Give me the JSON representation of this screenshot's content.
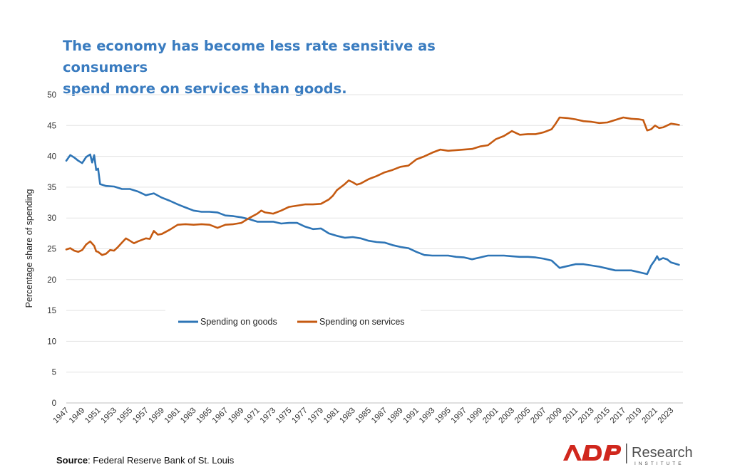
{
  "title": {
    "line1": "The economy has become less rate sensitive as consumers",
    "line2": "spend more on services than goods."
  },
  "source": {
    "label": "Source",
    "text": ": Federal Reserve Bank of St. Louis"
  },
  "logo": {
    "brand": "ADP",
    "name": "Research",
    "sub": "INSTITUTE",
    "brand_color": "#d0271d",
    "text_color": "#4d4d4d"
  },
  "chart_data": {
    "type": "line",
    "title": "The economy has become less rate sensitive as consumers spend more on services than goods.",
    "xlabel": "",
    "ylabel": "Percentage share of spending",
    "ylim": [
      0,
      50
    ],
    "yticks": [
      0,
      5,
      10,
      15,
      20,
      25,
      30,
      35,
      40,
      45,
      50
    ],
    "xlim": [
      1947,
      2024.5
    ],
    "xticks": [
      "1947",
      "1949",
      "1951",
      "1953",
      "1955",
      "1957",
      "1959",
      "1961",
      "1963",
      "1965",
      "1967",
      "1969",
      "1971",
      "1973",
      "1975",
      "1977",
      "1979",
      "1981",
      "1983",
      "1985",
      "1987",
      "1989",
      "1991",
      "1993",
      "1995",
      "1997",
      "1999",
      "2001",
      "2003",
      "2005",
      "2007",
      "2009",
      "2011",
      "2013",
      "2015",
      "2017",
      "2019",
      "2021",
      "2023"
    ],
    "grid": true,
    "legend_position": "center",
    "series": [
      {
        "name": "Spending on goods",
        "color": "#2e75b6",
        "points": [
          [
            1947,
            39.3
          ],
          [
            1947.5,
            40.2
          ],
          [
            1948,
            39.8
          ],
          [
            1948.5,
            39.3
          ],
          [
            1949,
            38.9
          ],
          [
            1949.5,
            39.9
          ],
          [
            1950,
            40.3
          ],
          [
            1950.25,
            39.0
          ],
          [
            1950.5,
            40.2
          ],
          [
            1950.75,
            37.8
          ],
          [
            1951,
            38.0
          ],
          [
            1951.25,
            35.5
          ],
          [
            1952,
            35.2
          ],
          [
            1953,
            35.1
          ],
          [
            1954,
            34.7
          ],
          [
            1955,
            34.7
          ],
          [
            1956,
            34.3
          ],
          [
            1957,
            33.7
          ],
          [
            1958,
            34.0
          ],
          [
            1959,
            33.3
          ],
          [
            1960,
            32.8
          ],
          [
            1961,
            32.2
          ],
          [
            1962,
            31.7
          ],
          [
            1963,
            31.2
          ],
          [
            1964,
            31.0
          ],
          [
            1965,
            31.0
          ],
          [
            1966,
            30.9
          ],
          [
            1967,
            30.4
          ],
          [
            1968,
            30.3
          ],
          [
            1969,
            30.1
          ],
          [
            1970,
            29.8
          ],
          [
            1971,
            29.4
          ],
          [
            1972,
            29.4
          ],
          [
            1973,
            29.4
          ],
          [
            1974,
            29.1
          ],
          [
            1975,
            29.2
          ],
          [
            1976,
            29.2
          ],
          [
            1977,
            28.6
          ],
          [
            1978,
            28.2
          ],
          [
            1979,
            28.3
          ],
          [
            1980,
            27.5
          ],
          [
            1981,
            27.1
          ],
          [
            1982,
            26.8
          ],
          [
            1983,
            26.9
          ],
          [
            1984,
            26.7
          ],
          [
            1985,
            26.3
          ],
          [
            1986,
            26.1
          ],
          [
            1987,
            26.0
          ],
          [
            1988,
            25.6
          ],
          [
            1989,
            25.3
          ],
          [
            1990,
            25.1
          ],
          [
            1991,
            24.5
          ],
          [
            1992,
            24.0
          ],
          [
            1993,
            23.9
          ],
          [
            1994,
            23.9
          ],
          [
            1995,
            23.9
          ],
          [
            1996,
            23.7
          ],
          [
            1997,
            23.6
          ],
          [
            1998,
            23.3
          ],
          [
            1999,
            23.6
          ],
          [
            2000,
            23.9
          ],
          [
            2001,
            23.9
          ],
          [
            2002,
            23.9
          ],
          [
            2003,
            23.8
          ],
          [
            2004,
            23.7
          ],
          [
            2005,
            23.7
          ],
          [
            2006,
            23.6
          ],
          [
            2007,
            23.4
          ],
          [
            2008,
            23.1
          ],
          [
            2009,
            21.9
          ],
          [
            2010,
            22.2
          ],
          [
            2011,
            22.5
          ],
          [
            2012,
            22.5
          ],
          [
            2013,
            22.3
          ],
          [
            2014,
            22.1
          ],
          [
            2015,
            21.8
          ],
          [
            2016,
            21.5
          ],
          [
            2017,
            21.5
          ],
          [
            2018,
            21.5
          ],
          [
            2019,
            21.2
          ],
          [
            2020,
            20.9
          ],
          [
            2020.5,
            22.3
          ],
          [
            2021,
            23.2
          ],
          [
            2021.25,
            23.8
          ],
          [
            2021.5,
            23.2
          ],
          [
            2022,
            23.5
          ],
          [
            2022.5,
            23.3
          ],
          [
            2023,
            22.8
          ],
          [
            2023.5,
            22.6
          ],
          [
            2024,
            22.4
          ]
        ]
      },
      {
        "name": "Spending on services",
        "color": "#c55a11",
        "points": [
          [
            1947,
            24.9
          ],
          [
            1947.5,
            25.1
          ],
          [
            1948,
            24.7
          ],
          [
            1948.5,
            24.5
          ],
          [
            1949,
            24.8
          ],
          [
            1949.5,
            25.7
          ],
          [
            1950,
            26.2
          ],
          [
            1950.5,
            25.5
          ],
          [
            1950.75,
            24.6
          ],
          [
            1951,
            24.5
          ],
          [
            1951.5,
            24.0
          ],
          [
            1952,
            24.2
          ],
          [
            1952.5,
            24.8
          ],
          [
            1953,
            24.7
          ],
          [
            1953.5,
            25.3
          ],
          [
            1954,
            26.0
          ],
          [
            1954.5,
            26.7
          ],
          [
            1955,
            26.3
          ],
          [
            1955.5,
            25.9
          ],
          [
            1956,
            26.2
          ],
          [
            1957,
            26.7
          ],
          [
            1957.5,
            26.6
          ],
          [
            1958,
            27.9
          ],
          [
            1958.5,
            27.3
          ],
          [
            1959,
            27.4
          ],
          [
            1960,
            28.1
          ],
          [
            1961,
            28.9
          ],
          [
            1962,
            29.0
          ],
          [
            1963,
            28.9
          ],
          [
            1964,
            29.0
          ],
          [
            1965,
            28.9
          ],
          [
            1966,
            28.4
          ],
          [
            1967,
            28.9
          ],
          [
            1968,
            29.0
          ],
          [
            1969,
            29.2
          ],
          [
            1970,
            30.0
          ],
          [
            1971,
            30.7
          ],
          [
            1971.5,
            31.2
          ],
          [
            1972,
            30.9
          ],
          [
            1973,
            30.7
          ],
          [
            1974,
            31.2
          ],
          [
            1975,
            31.8
          ],
          [
            1976,
            32.0
          ],
          [
            1977,
            32.2
          ],
          [
            1978,
            32.2
          ],
          [
            1979,
            32.3
          ],
          [
            1980,
            33.0
          ],
          [
            1980.5,
            33.6
          ],
          [
            1981,
            34.5
          ],
          [
            1982,
            35.5
          ],
          [
            1982.5,
            36.1
          ],
          [
            1983,
            35.8
          ],
          [
            1983.5,
            35.4
          ],
          [
            1984,
            35.6
          ],
          [
            1985,
            36.3
          ],
          [
            1986,
            36.8
          ],
          [
            1987,
            37.4
          ],
          [
            1988,
            37.8
          ],
          [
            1989,
            38.3
          ],
          [
            1990,
            38.5
          ],
          [
            1991,
            39.5
          ],
          [
            1992,
            40.0
          ],
          [
            1993,
            40.6
          ],
          [
            1994,
            41.1
          ],
          [
            1995,
            40.9
          ],
          [
            1996,
            41.0
          ],
          [
            1997,
            41.1
          ],
          [
            1998,
            41.2
          ],
          [
            1999,
            41.6
          ],
          [
            2000,
            41.8
          ],
          [
            2001,
            42.8
          ],
          [
            2002,
            43.3
          ],
          [
            2003,
            44.1
          ],
          [
            2004,
            43.5
          ],
          [
            2005,
            43.6
          ],
          [
            2006,
            43.6
          ],
          [
            2007,
            43.9
          ],
          [
            2008,
            44.4
          ],
          [
            2008.5,
            45.3
          ],
          [
            2009,
            46.3
          ],
          [
            2010,
            46.2
          ],
          [
            2011,
            46.0
          ],
          [
            2012,
            45.7
          ],
          [
            2013,
            45.6
          ],
          [
            2014,
            45.4
          ],
          [
            2015,
            45.5
          ],
          [
            2016,
            45.9
          ],
          [
            2017,
            46.3
          ],
          [
            2018,
            46.1
          ],
          [
            2019,
            46.0
          ],
          [
            2019.5,
            45.9
          ],
          [
            2020,
            44.2
          ],
          [
            2020.5,
            44.4
          ],
          [
            2021,
            45.0
          ],
          [
            2021.5,
            44.6
          ],
          [
            2022,
            44.7
          ],
          [
            2022.5,
            45.0
          ],
          [
            2023,
            45.3
          ],
          [
            2024,
            45.1
          ]
        ]
      }
    ]
  }
}
